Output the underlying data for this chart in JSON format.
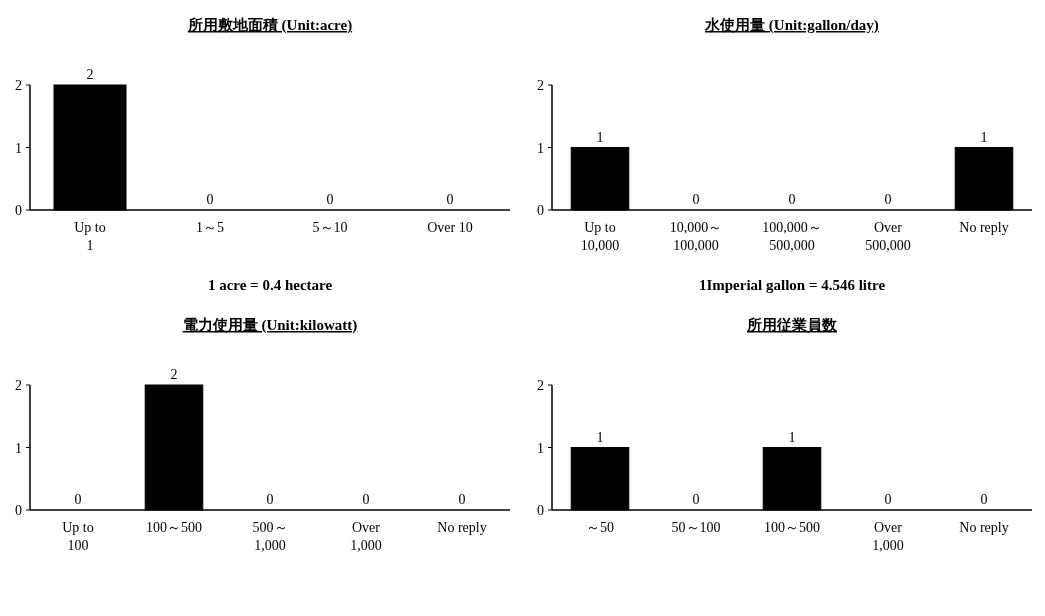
{
  "chart_data": [
    {
      "type": "bar",
      "title": "所用敷地面積 (Unit:acre)",
      "categories": [
        "Up to\n1",
        "1～5",
        "5～10",
        "Over 10"
      ],
      "values": [
        2,
        0,
        0,
        0
      ],
      "color": "#000000",
      "ylim": [
        0,
        2
      ],
      "yticks": [
        0,
        1,
        2
      ],
      "data_labels": true,
      "annotations": [
        "1 acre = 0.4 hectare"
      ]
    },
    {
      "type": "bar",
      "title": "水使用量 (Unit:gallon/day)",
      "categories": [
        "Up to\n10,000",
        "10,000～\n100,000",
        "100,000～\n500,000",
        "Over\n500,000",
        "No reply"
      ],
      "values": [
        1,
        0,
        0,
        0,
        1
      ],
      "color": "#000000",
      "ylim": [
        0,
        2
      ],
      "yticks": [
        0,
        1,
        2
      ],
      "data_labels": true,
      "annotations": [
        "1Imperial gallon = 4.546 litre"
      ]
    },
    {
      "type": "bar",
      "title": "電力使用量 (Unit:kilowatt)",
      "categories": [
        "Up to\n100",
        "100～500",
        "500～\n1,000",
        "Over\n1,000",
        "No reply"
      ],
      "values": [
        0,
        2,
        0,
        0,
        0
      ],
      "color": "#000000",
      "ylim": [
        0,
        2
      ],
      "yticks": [
        0,
        1,
        2
      ],
      "data_labels": true
    },
    {
      "type": "bar",
      "title": "所用従業員数",
      "categories": [
        "～50",
        "50～100",
        "100～500",
        "Over\n1,000",
        "No reply"
      ],
      "values": [
        1,
        0,
        1,
        0,
        0
      ],
      "color": "#000000",
      "ylim": [
        0,
        2
      ],
      "yticks": [
        0,
        1,
        2
      ],
      "data_labels": true
    }
  ]
}
